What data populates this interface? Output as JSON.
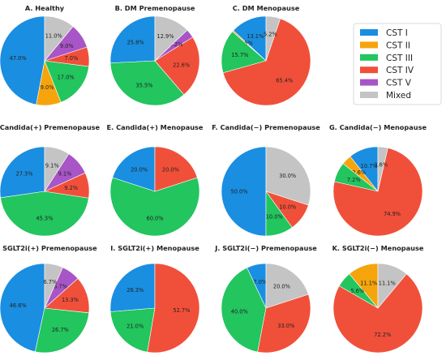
{
  "colors": {
    "CST I": "#1a8ee0",
    "CST II": "#f5a40c",
    "CST III": "#22c55e",
    "CST IV": "#f0503a",
    "CST V": "#a855c7",
    "Mixed": "#c4c4c4"
  },
  "legend": {
    "position": "top-right",
    "entries": [
      "CST I",
      "CST II",
      "CST III",
      "CST IV",
      "CST V",
      "Mixed"
    ]
  },
  "chart_data": [
    {
      "type": "pie",
      "title": "A. Healthy",
      "slices": [
        {
          "category": "CST I",
          "value": 47.0,
          "label": "47.0%"
        },
        {
          "category": "CST II",
          "value": 9.0,
          "label": "9.0%"
        },
        {
          "category": "CST III",
          "value": 17.0,
          "label": "17.0%"
        },
        {
          "category": "CST IV",
          "value": 7.0,
          "label": "7.0%"
        },
        {
          "category": "CST V",
          "value": 9.0,
          "label": "9.0%"
        },
        {
          "category": "Mixed",
          "value": 11.0,
          "label": "11.0%"
        }
      ]
    },
    {
      "type": "pie",
      "title": "B. DM Premenopause",
      "slices": [
        {
          "category": "CST I",
          "value": 25.8,
          "label": "25.8%"
        },
        {
          "category": "CST III",
          "value": 35.5,
          "label": "35.5%"
        },
        {
          "category": "CST IV",
          "value": 22.6,
          "label": "22.6%"
        },
        {
          "category": "CST V",
          "value": 3.2,
          "label": "3.2%"
        },
        {
          "category": "Mixed",
          "value": 12.9,
          "label": "12.9%"
        }
      ]
    },
    {
      "type": "pie",
      "title": "C. DM Menopause",
      "slices": [
        {
          "category": "CST I",
          "value": 13.1,
          "label": "13.1%"
        },
        {
          "category": "CST II",
          "value": 0.5,
          "label": "0.5%"
        },
        {
          "category": "CST III",
          "value": 15.7,
          "label": "15.7%"
        },
        {
          "category": "CST IV",
          "value": 65.4,
          "label": "65.4%"
        },
        {
          "category": "Mixed",
          "value": 5.2,
          "label": "5.2%"
        }
      ]
    },
    {
      "type": "pie",
      "title": "D. Candida(+) Premenopause",
      "slices": [
        {
          "category": "CST I",
          "value": 27.3,
          "label": "27.3%"
        },
        {
          "category": "CST III",
          "value": 45.3,
          "label": "45.3%"
        },
        {
          "category": "CST IV",
          "value": 9.2,
          "label": "9.2%"
        },
        {
          "category": "CST V",
          "value": 9.1,
          "label": "9.1%"
        },
        {
          "category": "Mixed",
          "value": 9.1,
          "label": "9.1%"
        }
      ]
    },
    {
      "type": "pie",
      "title": "E. Candida(+) Menopause",
      "slices": [
        {
          "category": "CST I",
          "value": 20.0,
          "label": "20.0%"
        },
        {
          "category": "CST III",
          "value": 60.0,
          "label": "60.0%"
        },
        {
          "category": "CST IV",
          "value": 20.0,
          "label": "20.0%"
        }
      ]
    },
    {
      "type": "pie",
      "title": "F. Candida(−) Premenopause",
      "slices": [
        {
          "category": "CST I",
          "value": 50.0,
          "label": "50.0%"
        },
        {
          "category": "CST III",
          "value": 10.0,
          "label": "10.0%"
        },
        {
          "category": "CST IV",
          "value": 10.0,
          "label": "10.0%"
        },
        {
          "category": "Mixed",
          "value": 30.0,
          "label": "30.0%"
        }
      ]
    },
    {
      "type": "pie",
      "title": "G. Candida(−) Menopause",
      "slices": [
        {
          "category": "CST I",
          "value": 10.7,
          "label": "10.7%"
        },
        {
          "category": "CST II",
          "value": 3.6,
          "label": "3.6%"
        },
        {
          "category": "CST III",
          "value": 7.2,
          "label": "7.2%"
        },
        {
          "category": "CST IV",
          "value": 74.9,
          "label": "74.9%"
        },
        {
          "category": "Mixed",
          "value": 3.6,
          "label": "3.6%"
        }
      ]
    },
    {
      "type": "pie",
      "title": "H. SGLT2i(+) Premenopause",
      "slices": [
        {
          "category": "CST I",
          "value": 46.6,
          "label": "46.6%"
        },
        {
          "category": "CST III",
          "value": 26.7,
          "label": "26.7%"
        },
        {
          "category": "CST IV",
          "value": 13.3,
          "label": "13.3%"
        },
        {
          "category": "CST V",
          "value": 6.7,
          "label": "6.7%"
        },
        {
          "category": "Mixed",
          "value": 6.7,
          "label": "6.7%"
        }
      ]
    },
    {
      "type": "pie",
      "title": "I. SGLT2i(+) Menopause",
      "slices": [
        {
          "category": "CST I",
          "value": 26.3,
          "label": "26.3%"
        },
        {
          "category": "CST III",
          "value": 21.0,
          "label": "21.0%"
        },
        {
          "category": "CST IV",
          "value": 52.7,
          "label": "52.7%"
        }
      ]
    },
    {
      "type": "pie",
      "title": "J. SGLT2i(−) Premenopause",
      "slices": [
        {
          "category": "CST I",
          "value": 7.0,
          "label": "7.0%"
        },
        {
          "category": "CST III",
          "value": 40.0,
          "label": "40.0%"
        },
        {
          "category": "CST IV",
          "value": 33.0,
          "label": "33.0%"
        },
        {
          "category": "Mixed",
          "value": 20.0,
          "label": "20.0%"
        }
      ]
    },
    {
      "type": "pie",
      "title": "K. SGLT2i(−) Menopause",
      "slices": [
        {
          "category": "CST II",
          "value": 11.1,
          "label": "11.1%"
        },
        {
          "category": "CST III",
          "value": 5.6,
          "label": "5.6%"
        },
        {
          "category": "CST IV",
          "value": 72.2,
          "label": "72.2%"
        },
        {
          "category": "Mixed",
          "value": 11.1,
          "label": "11.1%"
        }
      ]
    }
  ]
}
